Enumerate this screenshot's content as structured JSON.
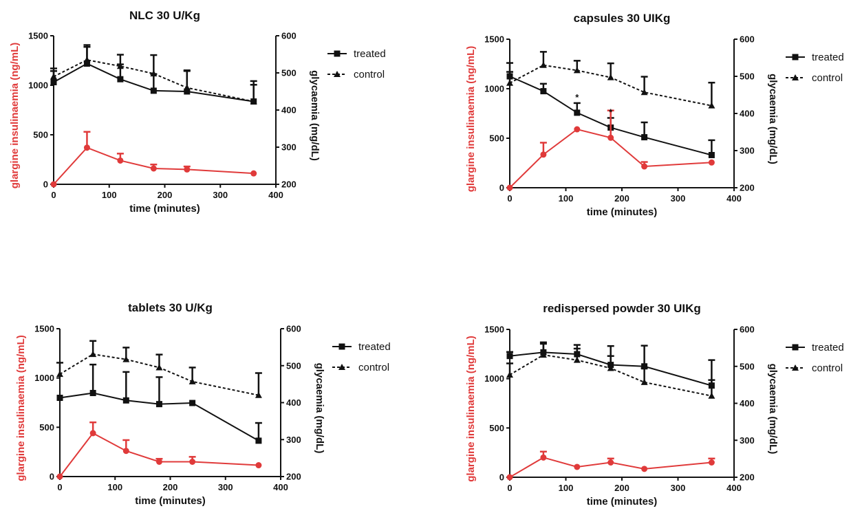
{
  "colors": {
    "insulin": "#e03a3a",
    "glycemia": "#111111"
  },
  "chart_data": [
    {
      "type": "line",
      "title": "NLC 30 U/Kg",
      "xlabel": "time (minutes)",
      "ylabel_left": "glargine insulinaemia (ng/mL)",
      "ylabel_right": "glycaemia (mg/dL)",
      "xlim": [
        0,
        400
      ],
      "xticks": [
        0,
        100,
        200,
        300,
        400
      ],
      "ylim_left": [
        0,
        1500
      ],
      "yticks_left": [
        0,
        500,
        1000,
        1500
      ],
      "ylim_right": [
        200,
        600
      ],
      "yticks_right": [
        200,
        300,
        400,
        500,
        600
      ],
      "legend": [
        "treated",
        "control"
      ],
      "insulin": {
        "x": [
          0,
          60,
          120,
          180,
          240,
          360
        ],
        "y": [
          0,
          370,
          240,
          160,
          150,
          110
        ],
        "err": [
          0,
          160,
          70,
          40,
          30,
          0
        ]
      },
      "treated": {
        "x": [
          0,
          60,
          120,
          180,
          240,
          360
        ],
        "y": [
          475,
          525,
          483,
          452,
          450,
          423
        ],
        "err": [
          30,
          45,
          40,
          45,
          55,
          45
        ],
        "marker": "square",
        "line": "solid"
      },
      "control": {
        "x": [
          0,
          60,
          120,
          180,
          240,
          360
        ],
        "y": [
          490,
          535,
          518,
          498,
          460,
          423
        ],
        "err": [
          22,
          40,
          31,
          50,
          47,
          55
        ],
        "marker": "triangle",
        "line": "dashed"
      },
      "annotations": []
    },
    {
      "type": "line",
      "title": "capsules 30 UIKg",
      "xlabel": "time (minutes)",
      "ylabel_left": "glargine insulinaemia (ng/mL)",
      "ylabel_right": "glycaemia (mg/dL)",
      "xlim": [
        0,
        400
      ],
      "xticks": [
        0,
        100,
        200,
        300,
        400
      ],
      "ylim_left": [
        0,
        1500
      ],
      "yticks_left": [
        0,
        500,
        1000,
        1500
      ],
      "ylim_right": [
        200,
        600
      ],
      "yticks_right": [
        200,
        300,
        400,
        500,
        600
      ],
      "legend": [
        "treated",
        "control"
      ],
      "insulin": {
        "x": [
          0,
          60,
          120,
          180,
          240,
          360
        ],
        "y": [
          0,
          335,
          590,
          505,
          215,
          255
        ],
        "err": [
          0,
          120,
          0,
          275,
          45,
          0
        ]
      },
      "treated": {
        "x": [
          0,
          60,
          120,
          180,
          240,
          360
        ],
        "y": [
          500,
          460,
          402,
          362,
          336,
          288
        ],
        "err": [
          36,
          20,
          26,
          26,
          40,
          40
        ],
        "marker": "square",
        "line": "solid"
      },
      "control": {
        "x": [
          0,
          60,
          120,
          180,
          240,
          360
        ],
        "y": [
          482,
          530,
          516,
          497,
          457,
          421
        ],
        "err": [
          30,
          36,
          26,
          38,
          42,
          62
        ],
        "marker": "triangle",
        "line": "dashed"
      },
      "annotations": [
        {
          "x": 120,
          "y": 435,
          "text": "*"
        },
        {
          "x": 180,
          "y": 395,
          "text": "*"
        }
      ]
    },
    {
      "type": "line",
      "title": "tablets 30 U/Kg",
      "xlabel": "time (minutes)",
      "ylabel_left": "glargine insulinaemia (ng/mL)",
      "ylabel_right": "glycaemia (mg/dL)",
      "xlim": [
        0,
        400
      ],
      "xticks": [
        0,
        100,
        200,
        300,
        400
      ],
      "ylim_left": [
        0,
        1500
      ],
      "yticks_left": [
        0,
        500,
        1000,
        1500
      ],
      "ylim_right": [
        200,
        600
      ],
      "yticks_right": [
        200,
        300,
        400,
        500,
        600
      ],
      "legend": [
        "treated",
        "control"
      ],
      "insulin": {
        "x": [
          0,
          60,
          120,
          180,
          240,
          360
        ],
        "y": [
          0,
          440,
          260,
          150,
          150,
          115
        ],
        "err": [
          0,
          110,
          110,
          30,
          50,
          0
        ]
      },
      "treated": {
        "x": [
          0,
          60,
          120,
          180,
          240,
          360
        ],
        "y": [
          413,
          426,
          406,
          396,
          399,
          297
        ],
        "err": [
          0,
          77,
          77,
          73,
          0,
          48
        ],
        "marker": "square",
        "line": "solid"
      },
      "control": {
        "x": [
          0,
          60,
          120,
          180,
          240,
          360
        ],
        "y": [
          477,
          531,
          517,
          495,
          457,
          420
        ],
        "err": [
          31,
          36,
          32,
          35,
          38,
          60
        ],
        "marker": "triangle",
        "line": "dashed"
      },
      "annotations": []
    },
    {
      "type": "line",
      "title": "redispersed powder 30 UIKg",
      "xlabel": "time (minutes)",
      "ylabel_left": "glargine insulinaemia (ng/mL)",
      "ylabel_right": "glycaemia (mg/dL)",
      "xlim": [
        0,
        400
      ],
      "xticks": [
        0,
        100,
        200,
        300,
        400
      ],
      "ylim_left": [
        0,
        1500
      ],
      "yticks_left": [
        0,
        500,
        1000,
        1500
      ],
      "ylim_right": [
        200,
        600
      ],
      "yticks_right": [
        200,
        300,
        400,
        500,
        600
      ],
      "legend": [
        "treated",
        "control"
      ],
      "insulin": {
        "x": [
          0,
          60,
          120,
          180,
          240,
          360
        ],
        "y": [
          0,
          200,
          105,
          150,
          85,
          150
        ],
        "err": [
          0,
          60,
          0,
          40,
          0,
          40
        ]
      },
      "treated": {
        "x": [
          0,
          60,
          120,
          180,
          240,
          360
        ],
        "y": [
          528,
          538,
          533,
          504,
          500,
          448
        ],
        "err": [
          11,
          23,
          25,
          51,
          56,
          69
        ],
        "marker": "square",
        "line": "solid"
      },
      "control": {
        "x": [
          0,
          60,
          120,
          180,
          240,
          360
        ],
        "y": [
          477,
          531,
          517,
          495,
          457,
          420
        ],
        "err": [
          31,
          34,
          31,
          33,
          38,
          43
        ],
        "marker": "triangle",
        "line": "dashed"
      },
      "annotations": []
    }
  ]
}
